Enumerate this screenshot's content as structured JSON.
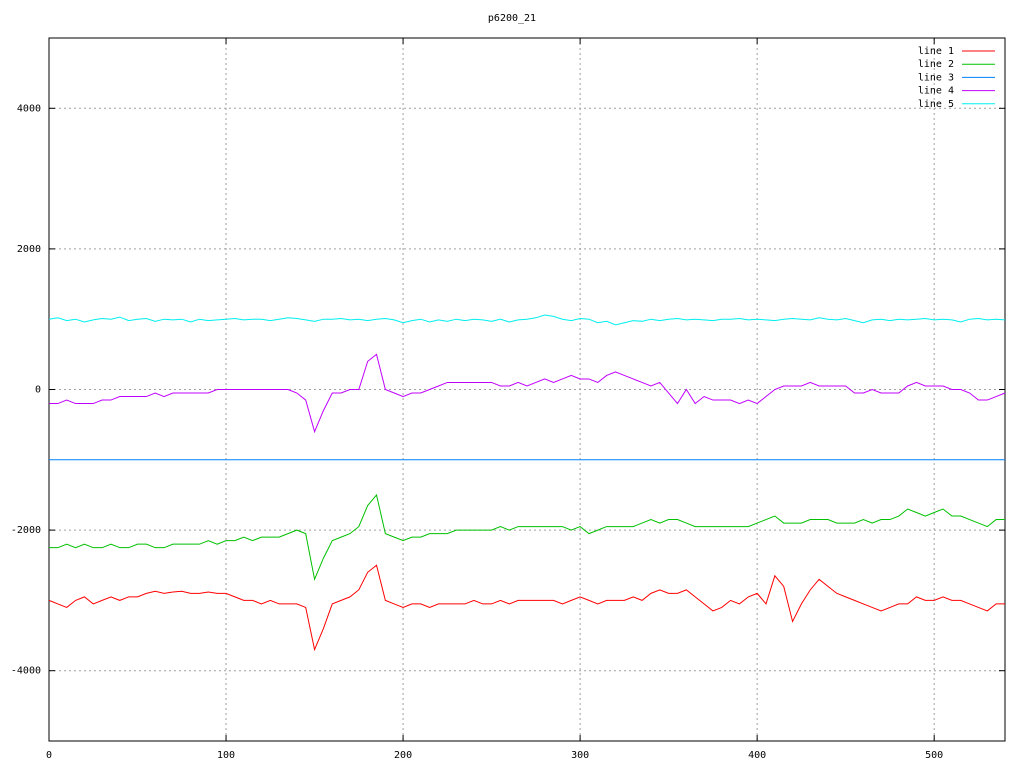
{
  "chart_data": {
    "type": "line",
    "title": "p6200_21",
    "x": [
      0,
      5,
      10,
      15,
      20,
      25,
      30,
      35,
      40,
      45,
      50,
      55,
      60,
      65,
      70,
      75,
      80,
      85,
      90,
      95,
      100,
      105,
      110,
      115,
      120,
      125,
      130,
      135,
      140,
      145,
      150,
      155,
      160,
      165,
      170,
      175,
      180,
      185,
      190,
      195,
      200,
      205,
      210,
      215,
      220,
      225,
      230,
      235,
      240,
      245,
      250,
      255,
      260,
      265,
      270,
      275,
      280,
      285,
      290,
      295,
      300,
      305,
      310,
      315,
      320,
      325,
      330,
      335,
      340,
      345,
      350,
      355,
      360,
      365,
      370,
      375,
      380,
      385,
      390,
      395,
      400,
      405,
      410,
      415,
      420,
      425,
      430,
      435,
      440,
      445,
      450,
      455,
      460,
      465,
      470,
      475,
      480,
      485,
      490,
      495,
      500,
      505,
      510,
      515,
      520,
      525,
      530,
      535,
      540
    ],
    "series": [
      {
        "name": "line 1",
        "color": "#ff0000",
        "values": [
          -3000,
          -3050,
          -3100,
          -3000,
          -2950,
          -3050,
          -3000,
          -2950,
          -3000,
          -2950,
          -2950,
          -2900,
          -2870,
          -2900,
          -2880,
          -2870,
          -2900,
          -2900,
          -2880,
          -2900,
          -2900,
          -2950,
          -3000,
          -3000,
          -3050,
          -3000,
          -3050,
          -3050,
          -3050,
          -3100,
          -3700,
          -3400,
          -3050,
          -3000,
          -2950,
          -2850,
          -2600,
          -2500,
          -3000,
          -3050,
          -3100,
          -3050,
          -3050,
          -3100,
          -3050,
          -3050,
          -3050,
          -3050,
          -3000,
          -3050,
          -3050,
          -3000,
          -3050,
          -3000,
          -3000,
          -3000,
          -3000,
          -3000,
          -3050,
          -3000,
          -2950,
          -3000,
          -3050,
          -3000,
          -3000,
          -3000,
          -2950,
          -3000,
          -2900,
          -2850,
          -2900,
          -2900,
          -2850,
          -2950,
          -3050,
          -3150,
          -3100,
          -3000,
          -3050,
          -2950,
          -2900,
          -3050,
          -2650,
          -2800,
          -3300,
          -3050,
          -2850,
          -2700,
          -2800,
          -2900,
          -2950,
          -3000,
          -3050,
          -3100,
          -3150,
          -3100,
          -3050,
          -3050,
          -2950,
          -3000,
          -3000,
          -2950,
          -3000,
          -3000,
          -3050,
          -3100,
          -3150,
          -3050,
          -3050
        ]
      },
      {
        "name": "line 2",
        "color": "#00c000",
        "values": [
          -2250,
          -2250,
          -2200,
          -2250,
          -2200,
          -2250,
          -2250,
          -2200,
          -2250,
          -2250,
          -2200,
          -2200,
          -2250,
          -2250,
          -2200,
          -2200,
          -2200,
          -2200,
          -2150,
          -2200,
          -2150,
          -2150,
          -2100,
          -2150,
          -2100,
          -2100,
          -2100,
          -2050,
          -2000,
          -2050,
          -2700,
          -2400,
          -2150,
          -2100,
          -2050,
          -1950,
          -1650,
          -1500,
          -2050,
          -2100,
          -2150,
          -2100,
          -2100,
          -2050,
          -2050,
          -2050,
          -2000,
          -2000,
          -2000,
          -2000,
          -2000,
          -1950,
          -2000,
          -1950,
          -1950,
          -1950,
          -1950,
          -1950,
          -1950,
          -2000,
          -1950,
          -2050,
          -2000,
          -1950,
          -1950,
          -1950,
          -1950,
          -1900,
          -1850,
          -1900,
          -1850,
          -1850,
          -1900,
          -1950,
          -1950,
          -1950,
          -1950,
          -1950,
          -1950,
          -1950,
          -1900,
          -1850,
          -1800,
          -1900,
          -1900,
          -1900,
          -1850,
          -1850,
          -1850,
          -1900,
          -1900,
          -1900,
          -1850,
          -1900,
          -1850,
          -1850,
          -1800,
          -1700,
          -1750,
          -1800,
          -1750,
          -1700,
          -1800,
          -1800,
          -1850,
          -1900,
          -1950,
          -1850,
          -1850
        ]
      },
      {
        "name": "line 3",
        "color": "#0080ff",
        "values": [
          -1000,
          -1000,
          -1000,
          -1000,
          -1000,
          -1000,
          -1000,
          -1000,
          -1000,
          -1000,
          -1000,
          -1000,
          -1000,
          -1000,
          -1000,
          -1000,
          -1000,
          -1000,
          -1000,
          -1000,
          -1000,
          -1000,
          -1000,
          -1000,
          -1000,
          -1000,
          -1000,
          -1000,
          -1000,
          -1000,
          -1000,
          -1000,
          -1000,
          -1000,
          -1000,
          -1000,
          -1000,
          -1000,
          -1000,
          -1000,
          -1000,
          -1000,
          -1000,
          -1000,
          -1000,
          -1000,
          -1000,
          -1000,
          -1000,
          -1000,
          -1000,
          -1000,
          -1000,
          -1000,
          -1000,
          -1000,
          -1000,
          -1000,
          -1000,
          -1000,
          -1000,
          -1000,
          -1000,
          -1000,
          -1000,
          -1000,
          -1000,
          -1000,
          -1000,
          -1000,
          -1000,
          -1000,
          -1000,
          -1000,
          -1000,
          -1000,
          -1000,
          -1000,
          -1000,
          -1000,
          -1000,
          -1000,
          -1000,
          -1000,
          -1000,
          -1000,
          -1000,
          -1000,
          -1000,
          -1000,
          -1000,
          -1000,
          -1000,
          -1000,
          -1000,
          -1000,
          -1000,
          -1000,
          -1000,
          -1000,
          -1000,
          -1000,
          -1000,
          -1000,
          -1000,
          -1000,
          -1000,
          -1000,
          -1000
        ]
      },
      {
        "name": "line 4",
        "color": "#c000ff",
        "values": [
          -200,
          -200,
          -150,
          -200,
          -200,
          -200,
          -150,
          -150,
          -100,
          -100,
          -100,
          -100,
          -50,
          -100,
          -50,
          -50,
          -50,
          -50,
          -50,
          0,
          0,
          0,
          0,
          0,
          0,
          0,
          0,
          0,
          -50,
          -150,
          -600,
          -300,
          -50,
          -50,
          0,
          0,
          400,
          500,
          0,
          -50,
          -100,
          -50,
          -50,
          0,
          50,
          100,
          100,
          100,
          100,
          100,
          100,
          50,
          50,
          100,
          50,
          100,
          150,
          100,
          150,
          200,
          150,
          150,
          100,
          200,
          250,
          200,
          150,
          100,
          50,
          100,
          -50,
          -200,
          0,
          -200,
          -100,
          -150,
          -150,
          -150,
          -200,
          -150,
          -200,
          -100,
          0,
          50,
          50,
          50,
          100,
          50,
          50,
          50,
          50,
          -50,
          -50,
          0,
          -50,
          -50,
          -50,
          50,
          100,
          50,
          50,
          50,
          0,
          0,
          -50,
          -150,
          -150,
          -100,
          -50
        ]
      },
      {
        "name": "line 5",
        "color": "#00eeee",
        "values": [
          1000,
          1020,
          980,
          1000,
          960,
          990,
          1010,
          1000,
          1030,
          980,
          1000,
          1010,
          970,
          1000,
          990,
          1000,
          960,
          1000,
          980,
          990,
          1000,
          1010,
          990,
          1000,
          1000,
          980,
          1000,
          1020,
          1010,
          990,
          970,
          1000,
          1000,
          1010,
          990,
          1000,
          980,
          1000,
          1010,
          990,
          950,
          980,
          1000,
          960,
          990,
          970,
          1000,
          980,
          1000,
          990,
          970,
          1000,
          960,
          990,
          1000,
          1020,
          1060,
          1040,
          1000,
          980,
          1010,
          1000,
          950,
          970,
          920,
          950,
          980,
          970,
          1000,
          980,
          1000,
          1010,
          990,
          1000,
          990,
          980,
          1000,
          1000,
          1010,
          990,
          1000,
          990,
          980,
          1000,
          1010,
          1000,
          990,
          1020,
          1000,
          990,
          1010,
          980,
          950,
          990,
          1000,
          980,
          1000,
          990,
          1000,
          1010,
          990,
          1000,
          990,
          960,
          1000,
          1010,
          990,
          1000,
          990
        ]
      }
    ],
    "xlim": [
      0,
      540
    ],
    "ylim": [
      -5000,
      5000
    ],
    "xticks": [
      0,
      100,
      200,
      300,
      400,
      500
    ],
    "yticks": [
      -4000,
      -2000,
      0,
      2000,
      4000
    ],
    "grid": true,
    "legend": "top-right"
  }
}
